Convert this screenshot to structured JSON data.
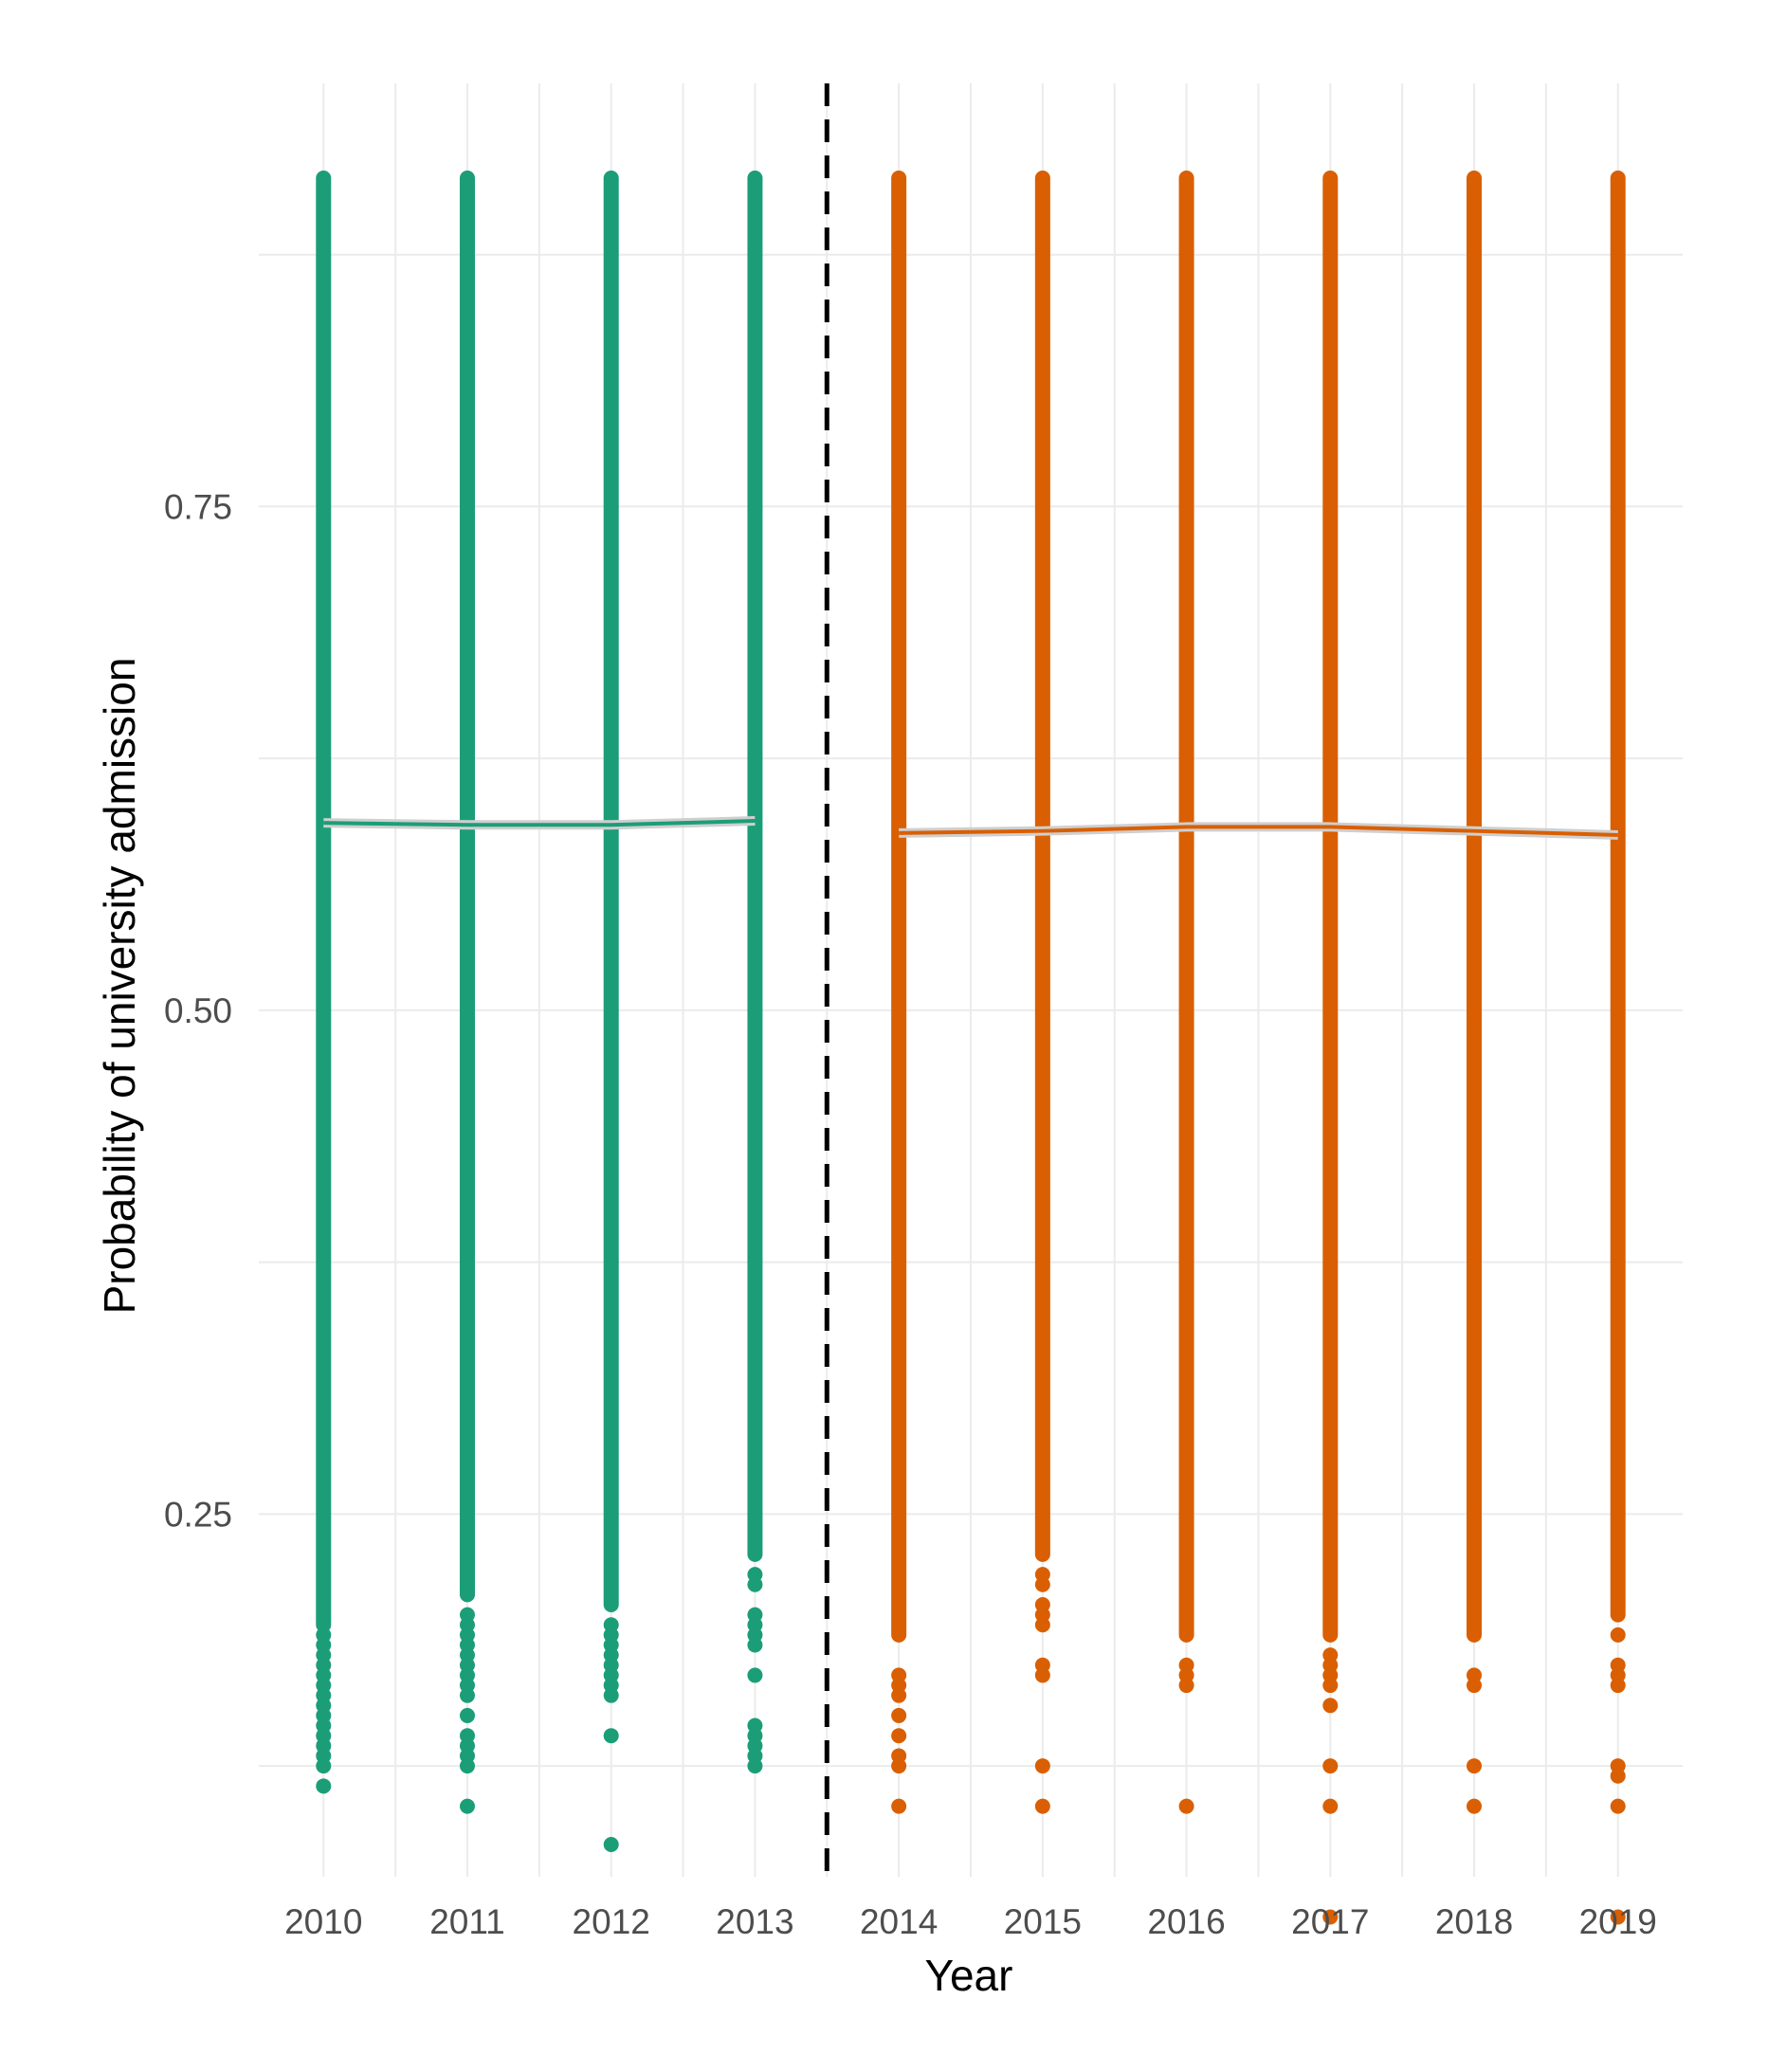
{
  "chart_data": {
    "type": "scatter",
    "title": "",
    "xlabel": "Year",
    "ylabel": "Probability of university admission",
    "x_ticks": [
      "2010",
      "2011",
      "2012",
      "2013",
      "2014",
      "2015",
      "2016",
      "2017",
      "2018",
      "2019"
    ],
    "y_ticks": [
      "0.25",
      "0.50",
      "0.75"
    ],
    "ylim": [
      0.07,
      0.96
    ],
    "xlim": [
      2009.55,
      2019.45
    ],
    "grid": true,
    "vline": {
      "x": 2013.5,
      "style": "dashed",
      "color": "#000000"
    },
    "series": [
      {
        "color": "#1b9e77",
        "x": [
          2010,
          2011,
          2012,
          2013
        ],
        "trend_y": [
          0.593,
          0.592,
          0.592,
          0.594
        ],
        "points": [
          {
            "x": 2010,
            "ymin": 0.195,
            "ymax": 0.913,
            "outliers": [
              0.19,
              0.185,
              0.18,
              0.175,
              0.17,
              0.165,
              0.16,
              0.155,
              0.15,
              0.145,
              0.14,
              0.135,
              0.13,
              0.125,
              0.115
            ]
          },
          {
            "x": 2011,
            "ymin": 0.21,
            "ymax": 0.913,
            "outliers": [
              0.2,
              0.195,
              0.19,
              0.185,
              0.18,
              0.175,
              0.17,
              0.165,
              0.16,
              0.15,
              0.14,
              0.135,
              0.13,
              0.125,
              0.105
            ]
          },
          {
            "x": 2012,
            "ymin": 0.205,
            "ymax": 0.913,
            "outliers": [
              0.195,
              0.19,
              0.185,
              0.18,
              0.175,
              0.17,
              0.165,
              0.16,
              0.14,
              0.086
            ]
          },
          {
            "x": 2013,
            "ymin": 0.23,
            "ymax": 0.913,
            "outliers": [
              0.22,
              0.215,
              0.2,
              0.195,
              0.19,
              0.185,
              0.17,
              0.145,
              0.14,
              0.135,
              0.13,
              0.125
            ]
          }
        ]
      },
      {
        "color": "#d95f02",
        "x": [
          2014,
          2015,
          2016,
          2017,
          2018,
          2019
        ],
        "trend_y": [
          0.588,
          0.589,
          0.591,
          0.591,
          0.589,
          0.587
        ],
        "points": [
          {
            "x": 2014,
            "ymin": 0.19,
            "ymax": 0.913,
            "outliers": [
              0.17,
              0.165,
              0.16,
              0.15,
              0.14,
              0.13,
              0.125,
              0.105
            ]
          },
          {
            "x": 2015,
            "ymin": 0.23,
            "ymax": 0.913,
            "outliers": [
              0.22,
              0.215,
              0.205,
              0.2,
              0.195,
              0.175,
              0.17,
              0.125,
              0.105
            ]
          },
          {
            "x": 2016,
            "ymin": 0.19,
            "ymax": 0.913,
            "outliers": [
              0.175,
              0.17,
              0.165,
              0.105
            ]
          },
          {
            "x": 2017,
            "ymin": 0.19,
            "ymax": 0.913,
            "outliers": [
              0.18,
              0.175,
              0.17,
              0.165,
              0.155,
              0.125,
              0.105,
              0.05
            ]
          },
          {
            "x": 2018,
            "ymin": 0.19,
            "ymax": 0.913,
            "outliers": [
              0.17,
              0.165,
              0.125,
              0.105
            ]
          },
          {
            "x": 2019,
            "ymin": 0.2,
            "ymax": 0.913,
            "outliers": [
              0.19,
              0.175,
              0.17,
              0.165,
              0.125,
              0.12,
              0.105,
              0.05
            ]
          }
        ]
      }
    ]
  }
}
